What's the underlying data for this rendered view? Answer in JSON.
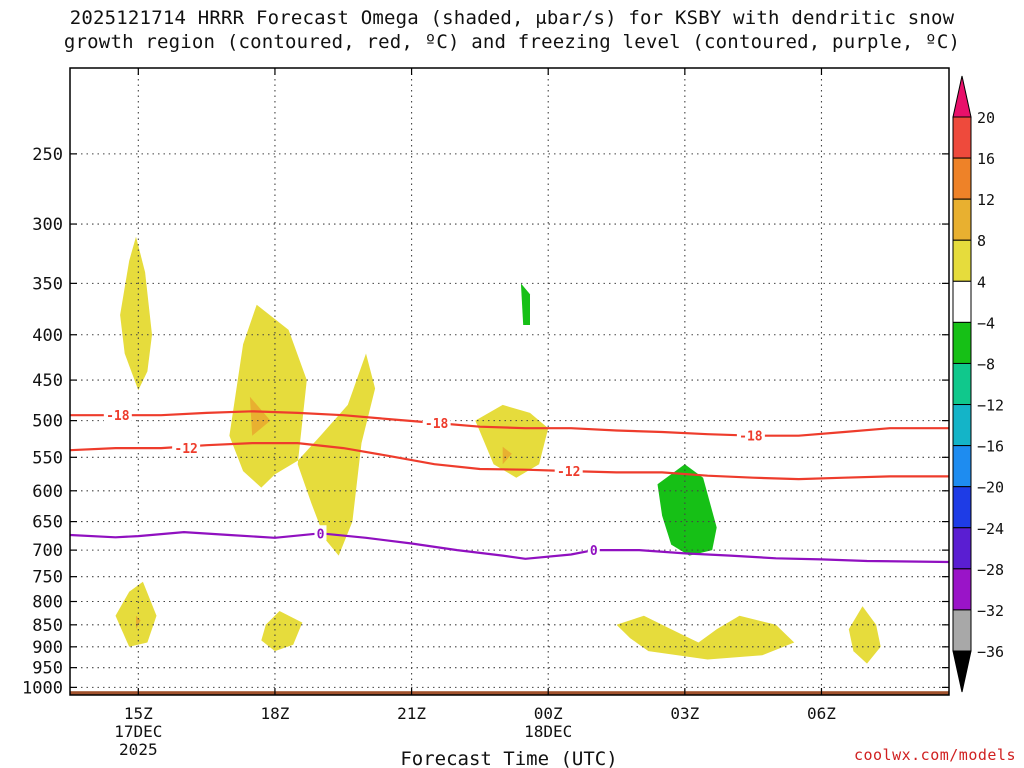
{
  "title": {
    "line1": "2025121714 HRRR Forecast Omega (shaded, μbar/s) for KSBY with dendritic snow",
    "line2": "growth region (contoured, red, ºC) and freezing level (contoured, purple, ºC)"
  },
  "watermark": "coolwx.com/models",
  "chart_data": {
    "type": "heatmap",
    "title": "2025121714 HRRR Forecast Omega (shaded, μbar/s) for KSBY with dendritic snow growth region (contoured, red, ºC) and freezing level (contoured, purple, ºC)",
    "xlabel": "Forecast Time (UTC)",
    "ylabel": "",
    "x_unit": "hours since 2025-12-17 14Z",
    "xlim": [
      -0.5,
      18.8
    ],
    "ylim": [
      1000,
      200
    ],
    "y_scale": "log-pressure (hPa)",
    "grid": true,
    "x_ticks": [
      {
        "x": 1,
        "label": "15Z",
        "date": "17DEC",
        "year": "2025"
      },
      {
        "x": 4,
        "label": "18Z"
      },
      {
        "x": 7,
        "label": "21Z"
      },
      {
        "x": 10,
        "label": "00Z",
        "date": "18DEC"
      },
      {
        "x": 13,
        "label": "03Z"
      },
      {
        "x": 16,
        "label": "06Z"
      }
    ],
    "y_ticks": [
      "250",
      "300",
      "350",
      "400",
      "450",
      "500",
      "550",
      "600",
      "650",
      "700",
      "750",
      "800",
      "850",
      "900",
      "950",
      "1000"
    ],
    "colorbar": {
      "labels": [
        "20",
        "16",
        "12",
        "8",
        "4",
        "−4",
        "−8",
        "−12",
        "−16",
        "−20",
        "−24",
        "−28",
        "−32",
        "−36"
      ],
      "levels": [
        20,
        16,
        12,
        8,
        4,
        -4,
        -8,
        -12,
        -16,
        -20,
        -24,
        -28,
        -32,
        -36
      ],
      "colors": [
        "#e8106a",
        "#ee4a3c",
        "#ee8228",
        "#e8b030",
        "#e6dc3c",
        "#ffffff",
        "#16c016",
        "#10c88c",
        "#14b4c8",
        "#1e8cf0",
        "#1e3ce6",
        "#5a1ed2",
        "#9a14c8",
        "#a8a8a8",
        "#000000"
      ]
    },
    "omega_regions": [
      {
        "name": "positive",
        "level": 4,
        "points": [
          [
            0.95,
            310
          ],
          [
            1.15,
            340
          ],
          [
            1.3,
            400
          ],
          [
            1.2,
            440
          ],
          [
            1.0,
            462
          ],
          [
            0.7,
            420
          ],
          [
            0.6,
            380
          ],
          [
            0.8,
            330
          ]
        ]
      },
      {
        "name": "positive",
        "level": 4,
        "points": [
          [
            3.0,
            520
          ],
          [
            3.3,
            410
          ],
          [
            3.6,
            370
          ],
          [
            4.3,
            395
          ],
          [
            4.7,
            450
          ],
          [
            4.5,
            560
          ],
          [
            4.8,
            620
          ],
          [
            5.1,
            680
          ],
          [
            5.4,
            710
          ],
          [
            5.7,
            650
          ],
          [
            5.9,
            530
          ],
          [
            6.2,
            460
          ],
          [
            6.0,
            420
          ],
          [
            5.6,
            480
          ],
          [
            5.0,
            520
          ],
          [
            4.5,
            555
          ],
          [
            4.0,
            575
          ],
          [
            3.7,
            595
          ],
          [
            3.3,
            570
          ]
        ]
      },
      {
        "name": "positive",
        "level": 8,
        "points": [
          [
            3.45,
            470
          ],
          [
            3.9,
            500
          ],
          [
            3.5,
            520
          ]
        ]
      },
      {
        "name": "negative",
        "level": -4,
        "points": [
          [
            8.9,
            300
          ],
          [
            9.5,
            298
          ],
          [
            9.7,
            290
          ],
          [
            9.9,
            300
          ],
          [
            10.2,
            330
          ],
          [
            10.3,
            380
          ],
          [
            10.0,
            420
          ],
          [
            9.3,
            430
          ],
          [
            8.9,
            380
          ],
          [
            8.6,
            340
          ],
          [
            8.7,
            310
          ]
        ]
      },
      {
        "name": "negative",
        "level": -8,
        "points": [
          [
            9.4,
            350
          ],
          [
            9.6,
            360
          ],
          [
            9.6,
            390
          ],
          [
            9.45,
            390
          ]
        ]
      },
      {
        "name": "negative",
        "level": -4,
        "points": [
          [
            6.9,
            380
          ],
          [
            7.2,
            400
          ],
          [
            7.3,
            450
          ],
          [
            7.1,
            470
          ],
          [
            6.9,
            420
          ]
        ]
      },
      {
        "name": "positive",
        "level": 4,
        "points": [
          [
            8.4,
            500
          ],
          [
            9.0,
            480
          ],
          [
            9.6,
            490
          ],
          [
            10.0,
            510
          ],
          [
            9.8,
            560
          ],
          [
            9.3,
            580
          ],
          [
            8.8,
            560
          ]
        ]
      },
      {
        "name": "positive",
        "level": 8,
        "points": [
          [
            9.0,
            535
          ],
          [
            9.2,
            545
          ],
          [
            9.0,
            560
          ]
        ]
      },
      {
        "name": "negative",
        "level": -4,
        "points": [
          [
            1.8,
            560
          ],
          [
            2.1,
            520
          ],
          [
            2.2,
            600
          ],
          [
            2.0,
            630
          ],
          [
            1.8,
            610
          ]
        ]
      },
      {
        "name": "negative",
        "level": -4,
        "points": [
          [
            11.6,
            465
          ],
          [
            12.3,
            440
          ],
          [
            12.8,
            420
          ],
          [
            13.5,
            450
          ],
          [
            13.9,
            560
          ],
          [
            14.9,
            610
          ],
          [
            15.6,
            620
          ],
          [
            15.8,
            670
          ],
          [
            15.4,
            715
          ],
          [
            14.3,
            715
          ],
          [
            13.2,
            730
          ],
          [
            12.4,
            700
          ],
          [
            11.6,
            620
          ]
        ]
      },
      {
        "name": "negative",
        "level": -8,
        "points": [
          [
            12.4,
            590
          ],
          [
            13.0,
            560
          ],
          [
            13.4,
            580
          ],
          [
            13.7,
            660
          ],
          [
            13.6,
            700
          ],
          [
            13.1,
            710
          ],
          [
            12.7,
            690
          ],
          [
            12.5,
            640
          ]
        ]
      },
      {
        "name": "negative",
        "level": -4,
        "points": [
          [
            8.0,
            680
          ],
          [
            9.1,
            680
          ],
          [
            9.2,
            760
          ],
          [
            8.9,
            740
          ],
          [
            8.0,
            710
          ]
        ]
      },
      {
        "name": "positive",
        "level": 4,
        "points": [
          [
            0.5,
            830
          ],
          [
            0.8,
            780
          ],
          [
            1.1,
            760
          ],
          [
            1.4,
            830
          ],
          [
            1.2,
            890
          ],
          [
            0.8,
            900
          ]
        ]
      },
      {
        "name": "positive",
        "level": 8,
        "points": [
          [
            0.95,
            830
          ],
          [
            1.05,
            840
          ],
          [
            0.95,
            860
          ]
        ]
      },
      {
        "name": "positive",
        "level": 4,
        "points": [
          [
            3.8,
            850
          ],
          [
            4.1,
            820
          ],
          [
            4.6,
            845
          ],
          [
            4.4,
            895
          ],
          [
            4.0,
            910
          ],
          [
            3.7,
            885
          ]
        ]
      },
      {
        "name": "positive",
        "level": 4,
        "points": [
          [
            11.5,
            850
          ],
          [
            12.1,
            830
          ],
          [
            12.7,
            860
          ],
          [
            13.3,
            890
          ],
          [
            13.7,
            860
          ],
          [
            14.2,
            830
          ],
          [
            15.0,
            850
          ],
          [
            15.4,
            890
          ],
          [
            14.7,
            920
          ],
          [
            13.5,
            930
          ],
          [
            12.2,
            910
          ],
          [
            11.8,
            880
          ]
        ]
      },
      {
        "name": "positive",
        "level": 4,
        "points": [
          [
            16.6,
            860
          ],
          [
            16.9,
            810
          ],
          [
            17.2,
            850
          ],
          [
            17.3,
            900
          ],
          [
            17.0,
            940
          ],
          [
            16.7,
            910
          ]
        ]
      },
      {
        "name": "negative",
        "level": -4,
        "points": [
          [
            9.8,
            920
          ],
          [
            10.5,
            910
          ],
          [
            11.2,
            910
          ],
          [
            11.5,
            940
          ],
          [
            11.1,
            970
          ],
          [
            10.4,
            960
          ],
          [
            9.8,
            940
          ]
        ]
      }
    ],
    "series": [
      {
        "name": "-18 ºC isotherm",
        "color": "#ee3c2c",
        "label": "-18",
        "x": [
          -0.5,
          0.5,
          1.5,
          2.5,
          3.5,
          4.5,
          5.5,
          6.5,
          7.5,
          8.5,
          9.5,
          10.5,
          11.5,
          12.5,
          13.5,
          14.5,
          15.5,
          16.5,
          17.5,
          18.8
        ],
        "y": [
          493,
          493,
          493,
          490,
          488,
          490,
          493,
          498,
          503,
          508,
          510,
          510,
          513,
          515,
          518,
          520,
          520,
          515,
          510,
          510
        ]
      },
      {
        "name": "-12 ºC isotherm",
        "color": "#ee3c2c",
        "label": "-12",
        "x": [
          -0.5,
          0.5,
          1.5,
          2.5,
          3.5,
          4.5,
          5.5,
          6.5,
          7.5,
          8.5,
          9.5,
          10.5,
          11.5,
          12.5,
          13.5,
          14.5,
          15.5,
          16.5,
          17.5,
          18.8
        ],
        "y": [
          540,
          537,
          537,
          533,
          530,
          530,
          537,
          548,
          560,
          567,
          568,
          570,
          572,
          572,
          577,
          580,
          582,
          580,
          578,
          578
        ]
      },
      {
        "name": "0 ºC (freezing level)",
        "color": "#9010c0",
        "label": "0",
        "x": [
          -0.5,
          0.5,
          1.0,
          2.0,
          3.0,
          4.0,
          5.0,
          6.0,
          7.0,
          8.0,
          9.0,
          9.5,
          10.5,
          11.0,
          12.0,
          13.0,
          14.0,
          15.0,
          16.0,
          17.0,
          18.8
        ],
        "y": [
          673,
          677,
          675,
          668,
          673,
          678,
          670,
          678,
          688,
          700,
          710,
          716,
          708,
          700,
          700,
          706,
          710,
          715,
          717,
          720,
          722
        ]
      }
    ],
    "contour_labels": [
      {
        "text": "-18",
        "x": 0.55,
        "y": 493
      },
      {
        "text": "-12",
        "x": 2.05,
        "y": 537
      },
      {
        "text": "-18",
        "x": 7.55,
        "y": 503
      },
      {
        "text": "-12",
        "x": 10.45,
        "y": 570
      },
      {
        "text": "-18",
        "x": 14.45,
        "y": 520
      },
      {
        "text": "0",
        "x": 5.0,
        "y": 670
      },
      {
        "text": "0",
        "x": 11.0,
        "y": 700
      }
    ],
    "terrain": {
      "color": "#a0522d",
      "top_hpa": 1010
    }
  }
}
